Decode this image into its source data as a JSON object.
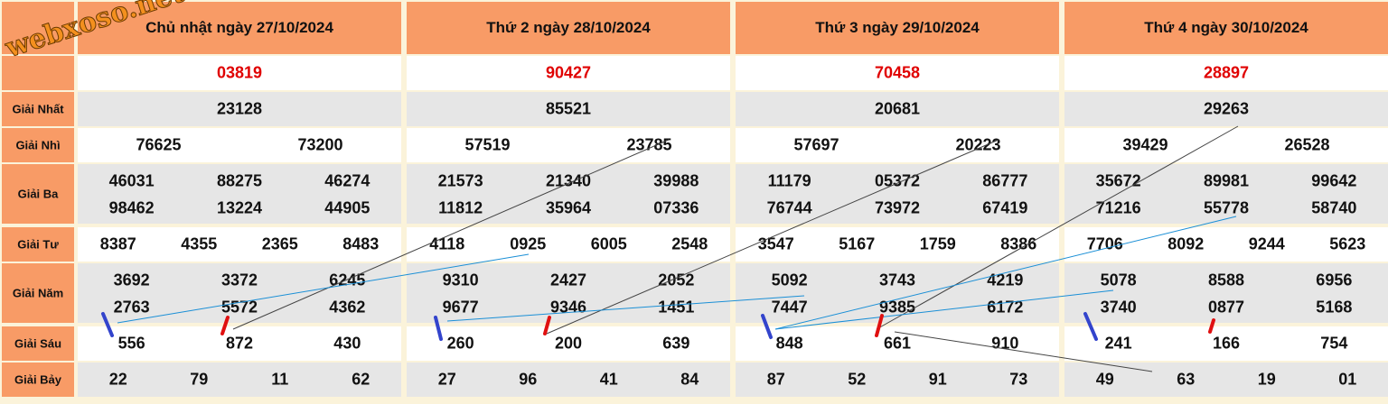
{
  "watermark": "webxoso.net",
  "labels": [
    "Giải Nhất",
    "Giải Nhì",
    "Giải Ba",
    "Giải Tư",
    "Giải Năm",
    "Giải Sáu",
    "Giải Bảy"
  ],
  "days": [
    {
      "title": "Chủ nhật ngày 27/10/2024",
      "special": "03819",
      "g1": [
        "23128"
      ],
      "g2": [
        "76625",
        "73200"
      ],
      "g3": [
        "46031",
        "88275",
        "46274",
        "98462",
        "13224",
        "44905"
      ],
      "g4": [
        "8387",
        "4355",
        "2365",
        "8483"
      ],
      "g5": [
        "3692",
        "3372",
        "6245",
        "2763",
        "5572",
        "4362"
      ],
      "g6": [
        "556",
        "872",
        "430"
      ],
      "g7": [
        "22",
        "79",
        "11",
        "62"
      ]
    },
    {
      "title": "Thứ 2 ngày 28/10/2024",
      "special": "90427",
      "g1": [
        "85521"
      ],
      "g2": [
        "57519",
        "23785"
      ],
      "g3": [
        "21573",
        "21340",
        "39988",
        "11812",
        "35964",
        "07336"
      ],
      "g4": [
        "4118",
        "0925",
        "6005",
        "2548"
      ],
      "g5": [
        "9310",
        "2427",
        "2052",
        "9677",
        "9346",
        "1451"
      ],
      "g6": [
        "260",
        "200",
        "639"
      ],
      "g7": [
        "27",
        "96",
        "41",
        "84"
      ]
    },
    {
      "title": "Thứ 3 ngày 29/10/2024",
      "special": "70458",
      "g1": [
        "20681"
      ],
      "g2": [
        "57697",
        "20223"
      ],
      "g3": [
        "11179",
        "05372",
        "86777",
        "76744",
        "73972",
        "67419"
      ],
      "g4": [
        "3547",
        "5167",
        "1759",
        "8386"
      ],
      "g5": [
        "5092",
        "3743",
        "4219",
        "7447",
        "9385",
        "6172"
      ],
      "g6": [
        "848",
        "661",
        "910"
      ],
      "g7": [
        "87",
        "52",
        "91",
        "73"
      ]
    },
    {
      "title": "Thứ 4 ngày 30/10/2024",
      "special": "28897",
      "g1": [
        "29263"
      ],
      "g2": [
        "39429",
        "26528"
      ],
      "g3": [
        "35672",
        "89981",
        "99642",
        "71216",
        "55778",
        "58740"
      ],
      "g4": [
        "7706",
        "8092",
        "9244",
        "5623"
      ],
      "g5": [
        "5078",
        "8588",
        "6956",
        "3740",
        "0877",
        "5168"
      ],
      "g6": [
        "241",
        "166",
        "754"
      ],
      "g7": [
        "49",
        "63",
        "19",
        "01"
      ]
    }
  ]
}
